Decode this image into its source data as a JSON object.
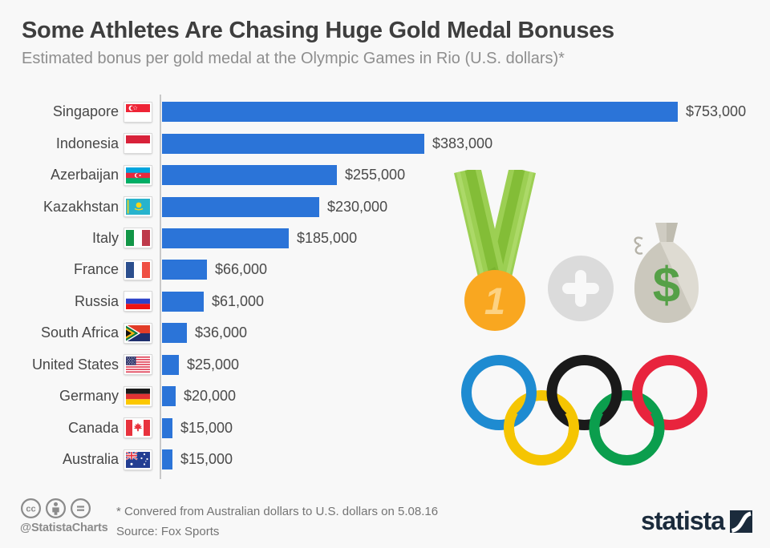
{
  "header": {
    "title": "Some Athletes Are Chasing Huge Gold Medal Bonuses",
    "subtitle": "Estimated bonus per gold medal at the Olympic Games in Rio (U.S. dollars)*"
  },
  "chart_data": {
    "type": "bar",
    "orientation": "horizontal",
    "title": "Some Athletes Are Chasing Huge Gold Medal Bonuses",
    "subtitle": "Estimated bonus per gold medal at the Olympic Games in Rio (U.S. dollars)*",
    "xlim": [
      0,
      753000
    ],
    "grid": false,
    "legend": false,
    "bar_color": "#2b74d8",
    "categories": [
      "Singapore",
      "Indonesia",
      "Azerbaijan",
      "Kazakhstan",
      "Italy",
      "France",
      "Russia",
      "South Africa",
      "United States",
      "Germany",
      "Canada",
      "Australia"
    ],
    "values": [
      753000,
      383000,
      255000,
      230000,
      185000,
      66000,
      61000,
      36000,
      25000,
      20000,
      15000,
      15000
    ],
    "value_labels": [
      "$753,000",
      "$383,000",
      "$255,000",
      "$230,000",
      "$185,000",
      "$66,000",
      "$61,000",
      "$36,000",
      "$25,000",
      "$20,000",
      "$15,000",
      "$15,000"
    ],
    "flags": [
      "sg",
      "id",
      "az",
      "kz",
      "it",
      "fr",
      "ru",
      "za",
      "us",
      "de",
      "ca",
      "au"
    ]
  },
  "graphics": {
    "medal_rank": "1",
    "dollar_sign": "$"
  },
  "footer": {
    "handle": "@StatistaCharts",
    "footnote": "* Convered from Australian dollars to U.S. dollars on 5.08.16",
    "source": "Source: Fox Sports",
    "brand": "statista"
  }
}
